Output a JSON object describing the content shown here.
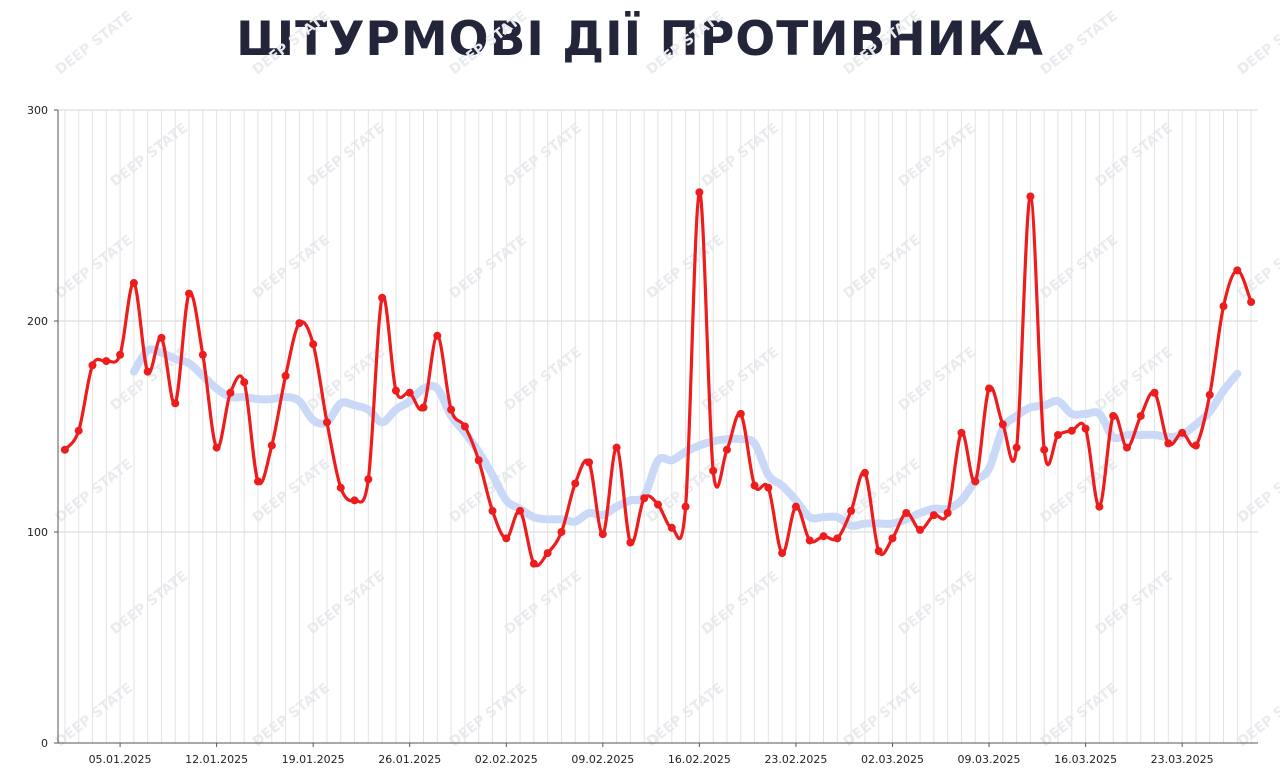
{
  "title": "ШТУРМОВІ ДІЇ ПРОТИВНИКА",
  "watermark": "DEEP STATE",
  "chart_data": {
    "type": "line",
    "title": "ШТУРМОВІ ДІЇ ПРОТИВНИКА",
    "xlabel": "",
    "ylabel": "",
    "ylim": [
      0,
      300
    ],
    "yticks": [
      "0",
      "100",
      "200",
      "300"
    ],
    "xticks": [
      "05.01.2025",
      "12.01.2025",
      "19.01.2025",
      "26.01.2025",
      "02.02.2025",
      "09.02.2025",
      "16.02.2025",
      "23.02.2025",
      "02.03.2025",
      "09.03.2025",
      "16.03.2025",
      "23.03.2025"
    ],
    "x_start": "01.01.2025",
    "grid": true,
    "colors": {
      "daily": "#ee1c1c",
      "average": "#c9d9f7"
    },
    "series": [
      {
        "style": "daily",
        "values": [
          139,
          148,
          179,
          181,
          184,
          218,
          176,
          192,
          161,
          213,
          184,
          140,
          166,
          171,
          124,
          141,
          174,
          199,
          189,
          152,
          121,
          115,
          125,
          211,
          167,
          166,
          159,
          193,
          158,
          150,
          134,
          110,
          97,
          110,
          85,
          90,
          100,
          123,
          133,
          99,
          140,
          95,
          116,
          113,
          102,
          112,
          261,
          129,
          139,
          156,
          122,
          121,
          90,
          112,
          96,
          98,
          97,
          110,
          128,
          91,
          97,
          109,
          101,
          108,
          109,
          147,
          124,
          168,
          151,
          140,
          259,
          139,
          146,
          148,
          149,
          112,
          155,
          140,
          155,
          166,
          142,
          147,
          141,
          165,
          207,
          224,
          209
        ]
      },
      {
        "style": "average",
        "values": [
          null,
          null,
          null,
          null,
          null,
          176,
          186,
          185,
          182,
          180,
          174,
          168,
          164,
          164,
          163,
          163,
          164,
          162,
          153,
          152,
          161,
          160,
          158,
          152,
          158,
          162,
          168,
          168,
          155,
          147,
          138,
          127,
          115,
          111,
          107,
          106,
          106,
          105,
          109,
          108,
          112,
          115,
          117,
          134,
          134,
          138,
          141,
          143,
          144,
          144,
          142,
          127,
          122,
          115,
          107,
          107,
          107,
          103,
          104,
          104,
          104,
          106,
          109,
          111,
          111,
          115,
          124,
          130,
          149,
          155,
          159,
          160,
          162,
          156,
          156,
          156,
          145,
          146,
          146,
          146,
          145,
          146,
          151,
          157,
          167,
          175,
          null
        ]
      }
    ]
  }
}
